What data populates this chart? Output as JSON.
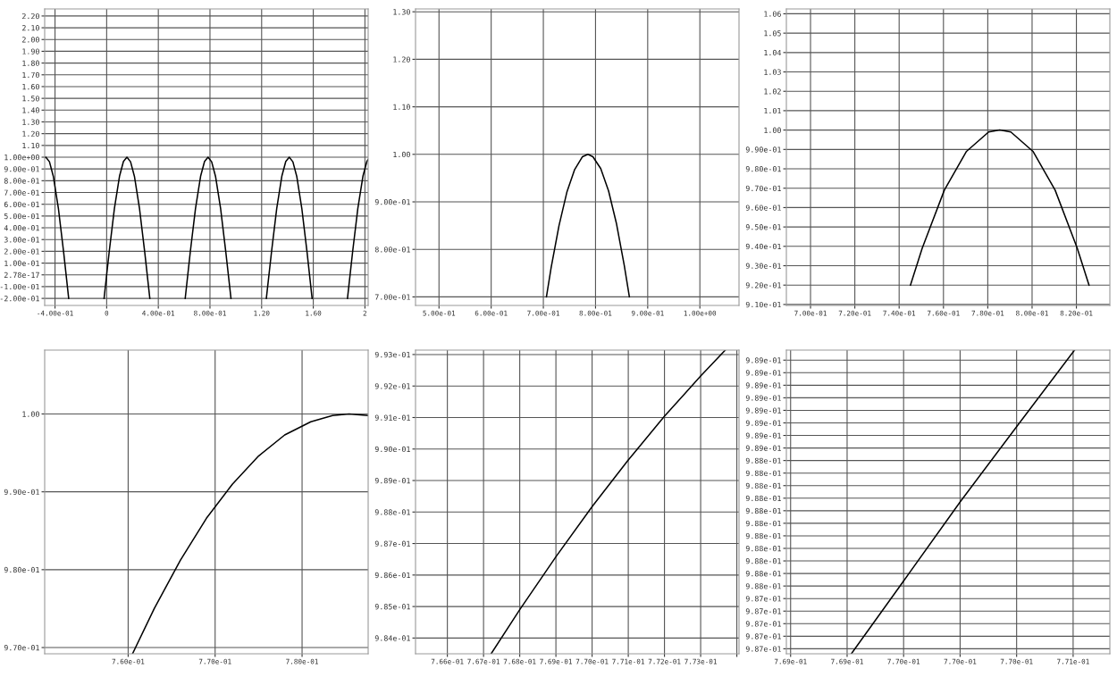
{
  "chart_data": [
    {
      "type": "line",
      "grid": true,
      "xlim": [
        -0.48,
        2.025
      ],
      "ylim": [
        -0.26,
        2.26
      ],
      "xticks": [
        {
          "value": -0.4,
          "label": "-4.00e-01"
        },
        0,
        {
          "value": 0.4,
          "label": "4.00e-01"
        },
        {
          "value": 0.8,
          "label": "8.00e-01"
        },
        {
          "value": 1.2,
          "label": "1.20"
        },
        {
          "value": 1.6,
          "label": "1.60"
        },
        2
      ],
      "yticks": [
        {
          "value": -0.2,
          "label": "-2.00e-01"
        },
        {
          "value": -0.1,
          "label": "-1.00e-01"
        },
        {
          "value": 0,
          "label": "2.78e-17"
        },
        {
          "value": 0.1,
          "label": "1.00e-01"
        },
        {
          "value": 0.2,
          "label": "2.00e-01"
        },
        {
          "value": 0.3,
          "label": "3.00e-01"
        },
        {
          "value": 0.4,
          "label": "4.00e-01"
        },
        {
          "value": 0.5,
          "label": "5.00e-01"
        },
        {
          "value": 0.6,
          "label": "6.00e-01"
        },
        {
          "value": 0.7,
          "label": "7.00e-01"
        },
        {
          "value": 0.8,
          "label": "8.00e-01"
        },
        {
          "value": 0.9,
          "label": "9.00e-01"
        },
        {
          "value": 1.0,
          "label": "1.00e+00"
        },
        {
          "value": 1.1,
          "label": "1.10"
        },
        {
          "value": 1.2,
          "label": "1.20"
        },
        {
          "value": 1.3,
          "label": "1.30"
        },
        {
          "value": 1.4,
          "label": "1.40"
        },
        {
          "value": 1.5,
          "label": "1.50"
        },
        {
          "value": 1.6,
          "label": "1.60"
        },
        {
          "value": 1.7,
          "label": "1.70"
        },
        {
          "value": 1.8,
          "label": "1.80"
        },
        {
          "value": 1.9,
          "label": "1.90"
        },
        {
          "value": 2.0,
          "label": "2.00"
        },
        {
          "value": 2.1,
          "label": "2.10"
        },
        {
          "value": 2.2,
          "label": "2.20"
        }
      ],
      "series": [
        {
          "color": "#000000",
          "x": [
            -0.48,
            -0.471,
            -0.443,
            -0.413,
            -0.373,
            -0.333,
            -0.2941
          ],
          "values": [
            0.996,
            1.0,
            0.961,
            0.837,
            0.558,
            0.19,
            -0.2
          ]
        },
        {
          "color": "#000000",
          "x": [
            -0.0201,
            0.02,
            0.06,
            0.1,
            0.13,
            0.157,
            0.185,
            0.215,
            0.255,
            0.295,
            0.3343
          ],
          "values": [
            -0.2,
            0.199,
            0.565,
            0.841,
            0.964,
            1.0,
            0.961,
            0.837,
            0.558,
            0.19,
            -0.2
          ]
        },
        {
          "color": "#000000",
          "x": [
            0.6082,
            0.648,
            0.688,
            0.728,
            0.758,
            0.785,
            0.813,
            0.843,
            0.883,
            0.923,
            0.9626
          ],
          "values": [
            -0.2,
            0.199,
            0.565,
            0.841,
            0.964,
            1.0,
            0.961,
            0.837,
            0.558,
            0.19,
            -0.2
          ]
        },
        {
          "color": "#000000",
          "x": [
            1.2365,
            1.277,
            1.317,
            1.357,
            1.387,
            1.414,
            1.442,
            1.472,
            1.512,
            1.552,
            1.5909
          ],
          "values": [
            -0.2,
            0.199,
            0.565,
            0.841,
            0.964,
            1.0,
            0.961,
            0.837,
            0.558,
            0.19,
            -0.2
          ]
        },
        {
          "color": "#000000",
          "x": [
            1.8648,
            1.905,
            1.945,
            1.985,
            2.015,
            2.025
          ],
          "values": [
            -0.2,
            0.199,
            0.565,
            0.841,
            0.964,
            0.98
          ]
        }
      ]
    },
    {
      "type": "line",
      "grid": true,
      "xlim": [
        0.455,
        1.075
      ],
      "ylim": [
        0.682,
        1.306
      ],
      "xticks": [
        {
          "value": 0.5,
          "label": "5.00e-01"
        },
        {
          "value": 0.6,
          "label": "6.00e-01"
        },
        {
          "value": 0.7,
          "label": "7.00e-01"
        },
        {
          "value": 0.8,
          "label": "8.00e-01"
        },
        {
          "value": 0.9,
          "label": "9.00e-01"
        },
        {
          "value": 1.0,
          "label": "1.00e+00"
        }
      ],
      "yticks": [
        {
          "value": 0.7,
          "label": "7.00e-01"
        },
        {
          "value": 0.8,
          "label": "8.00e-01"
        },
        {
          "value": 0.9,
          "label": "9.00e-01"
        },
        {
          "value": 1.0,
          "label": "1.00"
        },
        {
          "value": 1.1,
          "label": "1.10"
        },
        {
          "value": 1.2,
          "label": "1.20"
        },
        {
          "value": 1.3,
          "label": "1.30"
        }
      ],
      "series": [
        {
          "color": "#000000",
          "x": [
            0.7059,
            0.715,
            0.73,
            0.745,
            0.76,
            0.775,
            0.7854,
            0.795,
            0.81,
            0.825,
            0.84,
            0.855,
            0.8649
          ],
          "values": [
            0.7,
            0.762,
            0.85,
            0.92,
            0.968,
            0.995,
            1.0,
            0.995,
            0.97,
            0.923,
            0.855,
            0.767,
            0.7
          ]
        }
      ]
    },
    {
      "type": "line",
      "grid": true,
      "xlim": [
        0.6891,
        0.8351
      ],
      "ylim": [
        0.9095,
        1.0625
      ],
      "xticks": [
        {
          "value": 0.7,
          "label": "7.00e-01"
        },
        {
          "value": 0.72,
          "label": "7.20e-01"
        },
        {
          "value": 0.74,
          "label": "7.40e-01"
        },
        {
          "value": 0.76,
          "label": "7.60e-01"
        },
        {
          "value": 0.78,
          "label": "7.80e-01"
        },
        {
          "value": 0.8,
          "label": "8.00e-01"
        },
        {
          "value": 0.82,
          "label": "8.20e-01"
        }
      ],
      "yticks": [
        {
          "value": 0.91,
          "label": "9.10e-01"
        },
        {
          "value": 0.92,
          "label": "9.20e-01"
        },
        {
          "value": 0.93,
          "label": "9.30e-01"
        },
        {
          "value": 0.94,
          "label": "9.40e-01"
        },
        {
          "value": 0.95,
          "label": "9.50e-01"
        },
        {
          "value": 0.96,
          "label": "9.60e-01"
        },
        {
          "value": 0.97,
          "label": "9.70e-01"
        },
        {
          "value": 0.98,
          "label": "9.80e-01"
        },
        {
          "value": 0.99,
          "label": "9.90e-01"
        },
        {
          "value": 1.0,
          "label": "1.00"
        },
        {
          "value": 1.01,
          "label": "1.01"
        },
        {
          "value": 1.02,
          "label": "1.02"
        },
        {
          "value": 1.03,
          "label": "1.03"
        },
        {
          "value": 1.04,
          "label": "1.04"
        },
        {
          "value": 1.05,
          "label": "1.05"
        },
        {
          "value": 1.06,
          "label": "1.06"
        }
      ],
      "series": [
        {
          "color": "#000000",
          "x": [
            0.7451,
            0.7504,
            0.7604,
            0.7704,
            0.7804,
            0.7854,
            0.7904,
            0.8004,
            0.8104,
            0.8204,
            0.8257
          ],
          "values": [
            0.92,
            0.939,
            0.969,
            0.989,
            0.999,
            1.0,
            0.999,
            0.989,
            0.969,
            0.939,
            0.92
          ]
        }
      ]
    },
    {
      "type": "line",
      "grid": true,
      "xlim": [
        0.7504,
        0.7876
      ],
      "ylim": [
        0.9692,
        1.0082
      ],
      "xticks": [
        {
          "value": 0.76,
          "label": "7.60e-01"
        },
        {
          "value": 0.77,
          "label": "7.70e-01"
        },
        {
          "value": 0.78,
          "label": "7.80e-01"
        }
      ],
      "yticks": [
        {
          "value": 0.97,
          "label": "9.70e-01"
        },
        {
          "value": 0.98,
          "label": "9.80e-01"
        },
        {
          "value": 0.99,
          "label": "9.90e-01"
        },
        {
          "value": 1.0,
          "label": "1.00"
        }
      ],
      "series": [
        {
          "color": "#000000",
          "x": [
            0.7605,
            0.763,
            0.766,
            0.769,
            0.772,
            0.775,
            0.778,
            0.781,
            0.7835,
            0.7854,
            0.7876
          ],
          "values": [
            0.9692,
            0.975,
            0.9812,
            0.9866,
            0.991,
            0.9946,
            0.9973,
            0.999,
            0.9998,
            1.0,
            0.9998
          ]
        }
      ]
    },
    {
      "type": "line",
      "grid": true,
      "xlim": [
        0.76512,
        0.77406
      ],
      "ylim": [
        0.9835,
        0.99314
      ],
      "xticks": [
        {
          "value": 0.766,
          "label": "7.66e-01"
        },
        {
          "value": 0.767,
          "label": "7.67e-01"
        },
        {
          "value": 0.768,
          "label": "7.68e-01"
        },
        {
          "value": 0.769,
          "label": "7.69e-01"
        },
        {
          "value": 0.77,
          "label": "7.70e-01"
        },
        {
          "value": 0.771,
          "label": "7.71e-01"
        },
        {
          "value": 0.772,
          "label": "7.72e-01"
        },
        {
          "value": 0.773,
          "label": "7.73e-01"
        },
        {
          "value": 0.774,
          "label": null
        }
      ],
      "yticks": [
        {
          "value": 0.984,
          "label": "9.84e-01"
        },
        {
          "value": 0.985,
          "label": "9.85e-01"
        },
        {
          "value": 0.986,
          "label": "9.86e-01"
        },
        {
          "value": 0.987,
          "label": "9.87e-01"
        },
        {
          "value": 0.988,
          "label": "9.88e-01"
        },
        {
          "value": 0.989,
          "label": "9.89e-01"
        },
        {
          "value": 0.99,
          "label": "9.90e-01"
        },
        {
          "value": 0.991,
          "label": "9.91e-01"
        },
        {
          "value": 0.992,
          "label": "9.92e-01"
        },
        {
          "value": 0.993,
          "label": "9.93e-01"
        }
      ],
      "series": [
        {
          "color": "#000000",
          "x": [
            0.76721,
            0.768,
            0.769,
            0.77,
            0.771,
            0.772,
            0.773,
            0.77368
          ],
          "values": [
            0.9835,
            0.9849,
            0.98658,
            0.98817,
            0.98965,
            0.99104,
            0.99232,
            0.99314
          ]
        }
      ]
    },
    {
      "type": "line",
      "grid": true,
      "xlim": [
        0.76877,
        0.77106
      ],
      "ylim": [
        0.98696,
        0.98938
      ],
      "xticks": [
        {
          "value": 0.7688,
          "label": "7.69e-01"
        },
        {
          "value": 0.7692,
          "label": "7.69e-01"
        },
        {
          "value": 0.7696,
          "label": "7.70e-01"
        },
        {
          "value": 0.77,
          "label": "7.70e-01"
        },
        {
          "value": 0.7704,
          "label": "7.70e-01"
        },
        {
          "value": 0.7708,
          "label": "7.71e-01"
        }
      ],
      "yticks": [
        {
          "value": 0.987,
          "label": "9.87e-01"
        },
        {
          "value": 0.9871,
          "label": "9.87e-01"
        },
        {
          "value": 0.9872,
          "label": "9.87e-01"
        },
        {
          "value": 0.9873,
          "label": "9.87e-01"
        },
        {
          "value": 0.9874,
          "label": "9.87e-01"
        },
        {
          "value": 0.9875,
          "label": "9.88e-01"
        },
        {
          "value": 0.9876,
          "label": "9.88e-01"
        },
        {
          "value": 0.9877,
          "label": "9.88e-01"
        },
        {
          "value": 0.9878,
          "label": "9.88e-01"
        },
        {
          "value": 0.9879,
          "label": "9.88e-01"
        },
        {
          "value": 0.988,
          "label": "9.88e-01"
        },
        {
          "value": 0.9881,
          "label": "9.88e-01"
        },
        {
          "value": 0.9882,
          "label": "9.88e-01"
        },
        {
          "value": 0.9883,
          "label": "9.88e-01"
        },
        {
          "value": 0.9884,
          "label": "9.88e-01"
        },
        {
          "value": 0.9885,
          "label": "9.88e-01"
        },
        {
          "value": 0.9886,
          "label": "9.89e-01"
        },
        {
          "value": 0.9887,
          "label": "9.89e-01"
        },
        {
          "value": 0.9888,
          "label": "9.89e-01"
        },
        {
          "value": 0.9889,
          "label": "9.89e-01"
        },
        {
          "value": 0.989,
          "label": "9.89e-01"
        },
        {
          "value": 0.9891,
          "label": "9.89e-01"
        },
        {
          "value": 0.9892,
          "label": "9.89e-01"
        },
        {
          "value": 0.9893,
          "label": "9.89e-01"
        }
      ],
      "series": [
        {
          "color": "#000000",
          "x": [
            0.76923,
            0.7696,
            0.77,
            0.7704,
            0.77081
          ],
          "values": [
            0.98696,
            0.98754,
            0.98817,
            0.98877,
            0.98938
          ]
        }
      ]
    }
  ]
}
